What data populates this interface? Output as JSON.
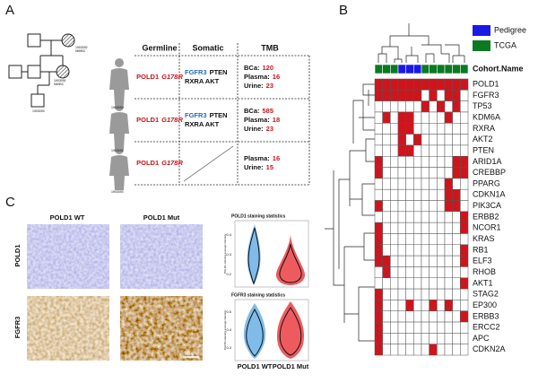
{
  "panels": {
    "a": "A",
    "b": "B",
    "c": "C"
  },
  "pedigree": {
    "ids": [
      {
        "id": "1903092",
        "dx": "NMIBC"
      },
      {
        "id": "1903091",
        "dx": "NMIBC"
      },
      {
        "id": "1903093"
      }
    ]
  },
  "table": {
    "headers": [
      "Germline",
      "Somatic",
      "TMB"
    ],
    "rows": [
      {
        "germline": {
          "gene": "POLD1",
          "mutation": "G178R"
        },
        "somatic": {
          "highlight": "FGFR3",
          "rest": "PTEN",
          "line2": "RXRA AKT"
        },
        "tmb": [
          {
            "label": "BCa:",
            "value": "120"
          },
          {
            "label": "Plasma:",
            "value": "16"
          },
          {
            "label": "Urine:",
            "value": "23"
          }
        ]
      },
      {
        "germline": {
          "gene": "POLD1",
          "mutation": "G178R"
        },
        "somatic": {
          "highlight": "FGFR3",
          "rest": "PTEN",
          "line2": "RXRA AKT"
        },
        "tmb": [
          {
            "label": "BCa:",
            "value": "585"
          },
          {
            "label": "Plasma:",
            "value": "18"
          },
          {
            "label": "Urine:",
            "value": "23"
          }
        ]
      },
      {
        "germline": {
          "gene": "POLD1",
          "mutation": "G178R"
        },
        "tmb": [
          {
            "label": "Plasma:",
            "value": "16"
          },
          {
            "label": "Urine:",
            "value": "15"
          }
        ]
      }
    ]
  },
  "heatmap": {
    "legend": [
      {
        "name": "Pedigree",
        "color": "#1a1ae6"
      },
      {
        "name": "TCGA",
        "color": "#0b7a22"
      }
    ],
    "cohort_title": "Cohort.Name",
    "cohort": [
      1,
      1,
      1,
      0,
      0,
      0,
      1,
      1,
      1,
      1,
      1,
      1
    ],
    "mutation_color": "#d0141c",
    "genes": [
      "POLD1",
      "FGFR3",
      "TP53",
      "KDM6A",
      "RXRA",
      "AKT2",
      "PTEN",
      "ARID1A",
      "CREBBP",
      "PPARG",
      "CDKN1A",
      "PIK3CA",
      "ERBB2",
      "NCOR1",
      "KRAS",
      "RB1",
      "ELF3",
      "RHOB",
      "AKT1",
      "STAG2",
      "EP300",
      "ERBB3",
      "ERCC2",
      "APC",
      "CDKN2A"
    ],
    "matrix": [
      [
        1,
        1,
        1,
        1,
        1,
        1,
        1,
        1,
        1,
        1,
        1,
        1
      ],
      [
        1,
        1,
        1,
        1,
        1,
        1,
        0,
        1,
        0,
        1,
        1,
        0
      ],
      [
        0,
        0,
        0,
        0,
        0,
        0,
        1,
        0,
        1,
        0,
        1,
        0
      ],
      [
        0,
        1,
        0,
        1,
        1,
        0,
        0,
        0,
        0,
        1,
        0,
        0
      ],
      [
        0,
        0,
        0,
        1,
        1,
        0,
        0,
        0,
        0,
        0,
        0,
        0
      ],
      [
        0,
        0,
        0,
        1,
        0,
        1,
        0,
        0,
        0,
        0,
        0,
        0
      ],
      [
        0,
        0,
        0,
        1,
        1,
        0,
        0,
        0,
        0,
        0,
        0,
        0
      ],
      [
        1,
        0,
        0,
        0,
        0,
        0,
        0,
        0,
        0,
        0,
        1,
        1
      ],
      [
        1,
        0,
        0,
        0,
        0,
        0,
        0,
        0,
        0,
        0,
        1,
        1
      ],
      [
        0,
        0,
        0,
        0,
        0,
        0,
        0,
        0,
        0,
        1,
        0,
        0
      ],
      [
        0,
        0,
        0,
        0,
        0,
        0,
        0,
        0,
        0,
        1,
        1,
        0
      ],
      [
        1,
        0,
        0,
        0,
        0,
        0,
        0,
        0,
        0,
        1,
        1,
        0
      ],
      [
        0,
        0,
        0,
        0,
        0,
        0,
        0,
        0,
        0,
        0,
        0,
        1
      ],
      [
        1,
        0,
        0,
        0,
        0,
        0,
        0,
        0,
        0,
        0,
        0,
        1
      ],
      [
        1,
        0,
        0,
        0,
        0,
        0,
        0,
        0,
        0,
        0,
        0,
        0
      ],
      [
        1,
        0,
        0,
        0,
        0,
        0,
        0,
        0,
        0,
        0,
        0,
        1
      ],
      [
        1,
        1,
        0,
        0,
        0,
        0,
        0,
        0,
        0,
        0,
        0,
        1
      ],
      [
        0,
        1,
        0,
        0,
        0,
        0,
        0,
        0,
        0,
        0,
        0,
        0
      ],
      [
        0,
        0,
        0,
        0,
        0,
        0,
        0,
        0,
        0,
        0,
        0,
        1
      ],
      [
        1,
        0,
        0,
        0,
        0,
        0,
        0,
        0,
        0,
        0,
        0,
        0
      ],
      [
        1,
        0,
        0,
        0,
        1,
        0,
        0,
        1,
        0,
        1,
        0,
        0
      ],
      [
        1,
        0,
        0,
        0,
        0,
        0,
        0,
        0,
        0,
        0,
        0,
        1
      ],
      [
        1,
        0,
        0,
        0,
        0,
        0,
        0,
        0,
        0,
        0,
        0,
        0
      ],
      [
        1,
        0,
        0,
        0,
        0,
        0,
        0,
        0,
        0,
        0,
        0,
        0
      ],
      [
        1,
        0,
        0,
        0,
        0,
        0,
        0,
        1,
        0,
        0,
        0,
        0
      ]
    ]
  },
  "staining": {
    "columns": [
      "POLD1 WT",
      "POLD1 Mut"
    ],
    "rows": [
      "POLD1",
      "FGFR3"
    ],
    "scale_bar": "100μm",
    "stats": [
      {
        "title": "POLD1 staining statistics",
        "ylabel": "POLD1 staining average intensity",
        "yticks": [
          "0.4",
          "0.3",
          "0.2"
        ],
        "groups": [
          "POLD1 WT",
          "POLD1 Mut"
        ]
      },
      {
        "title": "FGFR3 staining statistics",
        "ylabel": "FGFR3 staining average intensity",
        "yticks": [
          "0.5",
          "0.4",
          "0.3"
        ],
        "groups": [
          "POLD1 WT",
          "POLD1 Mut"
        ]
      }
    ]
  }
}
